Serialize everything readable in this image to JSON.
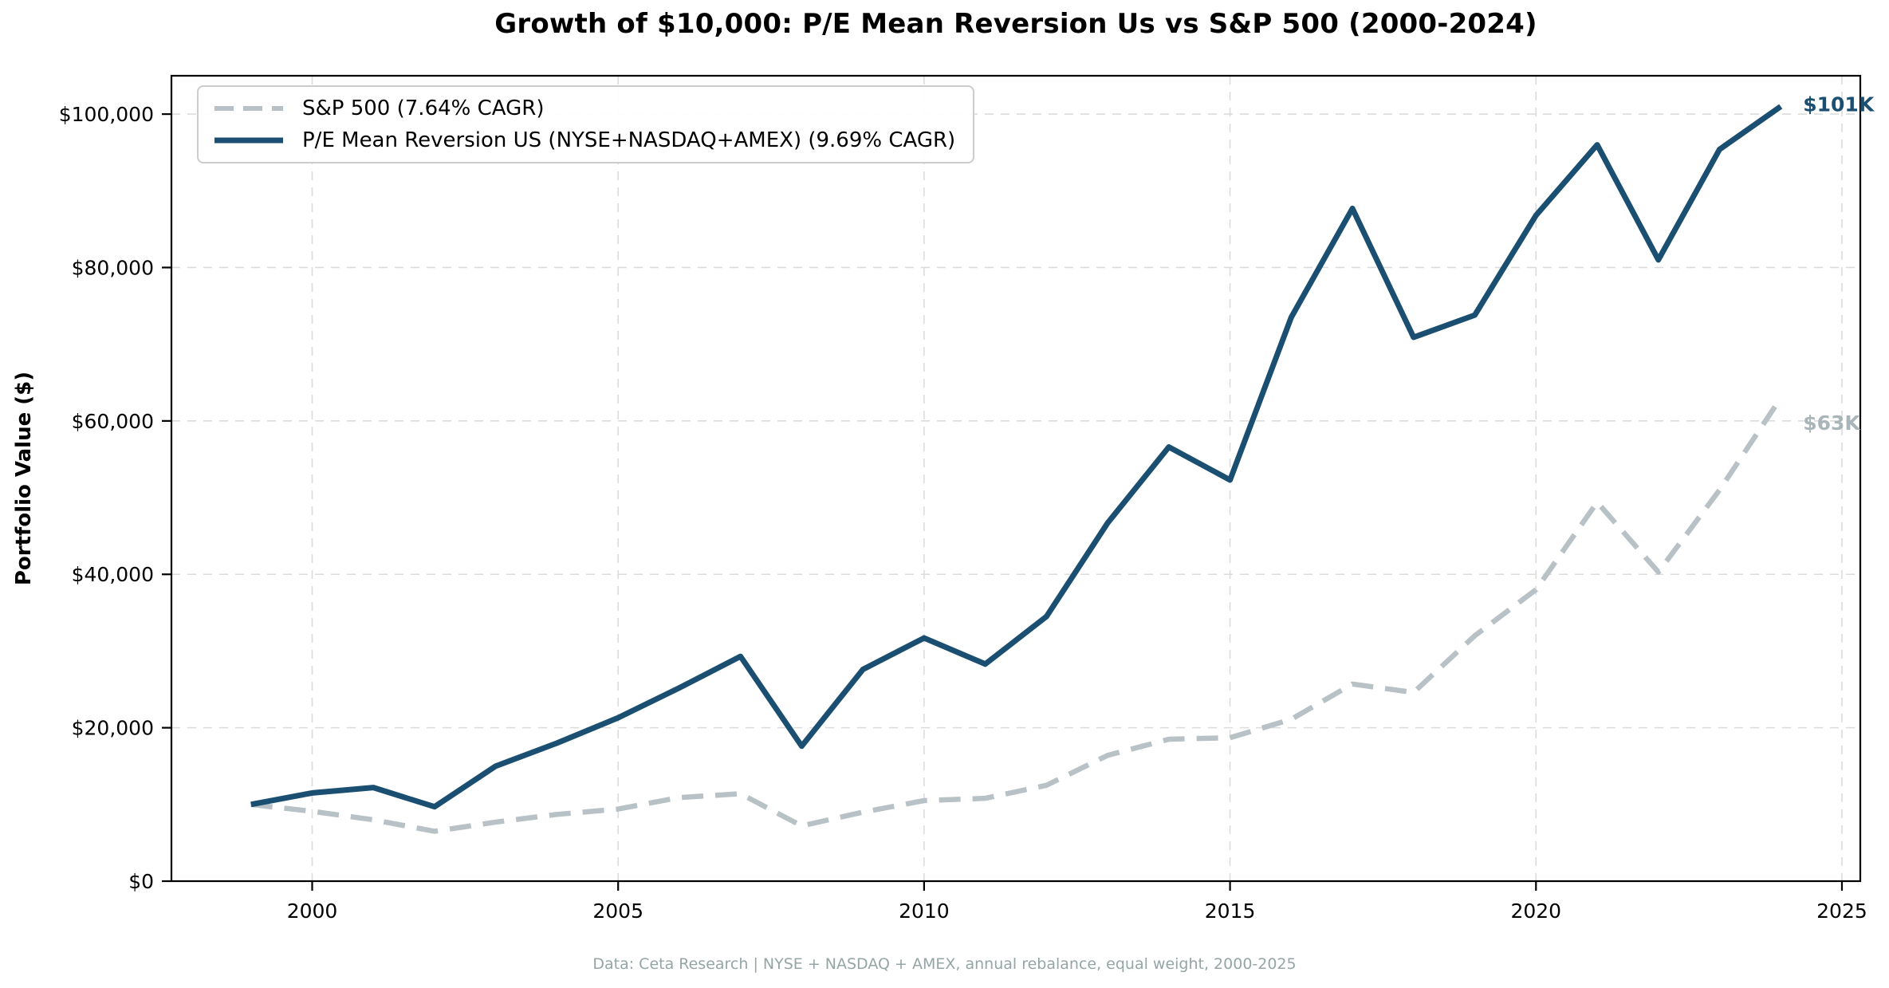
{
  "figure": {
    "title": "Growth of $10,000: P/E Mean Reversion Us vs S&P 500 (2000-2024)",
    "footer": "Data: Ceta Research | NYSE + NASDAQ + AMEX, annual rebalance, equal weight, 2000-2025"
  },
  "chart_data": {
    "type": "line",
    "title": "Growth of $10,000: P/E Mean Reversion Us vs S&P 500 (2000-2024)",
    "xlabel": "",
    "ylabel": "Portfolio Value ($)",
    "grid": true,
    "legend_position": "upper left",
    "xlim": [
      1997.7,
      2025.3
    ],
    "ylim": [
      0,
      105000
    ],
    "x": [
      1999,
      2000,
      2001,
      2002,
      2003,
      2004,
      2005,
      2006,
      2007,
      2008,
      2009,
      2010,
      2011,
      2012,
      2013,
      2014,
      2015,
      2016,
      2017,
      2018,
      2019,
      2020,
      2021,
      2022,
      2023,
      2024
    ],
    "xticks": {
      "values": [
        2000,
        2005,
        2010,
        2015,
        2020,
        2025
      ],
      "labels": [
        "2000",
        "2005",
        "2010",
        "2015",
        "2020",
        "2025"
      ]
    },
    "yticks": {
      "values": [
        0,
        20000,
        40000,
        60000,
        80000,
        100000
      ],
      "labels": [
        "$0",
        "$20,000",
        "$40,000",
        "$60,000",
        "$80,000",
        "$100,000"
      ]
    },
    "series": [
      {
        "name": "S&P 500 (7.64% CAGR)",
        "style": "dashed",
        "color": "#b8c2c6",
        "end_label": "$63K",
        "end_label_color": "#a9b5b9",
        "values": [
          10000,
          9100,
          8000,
          6500,
          7700,
          8700,
          9400,
          10900,
          11400,
          7200,
          9000,
          10500,
          10800,
          12500,
          16400,
          18500,
          18700,
          21100,
          25700,
          24600,
          32000,
          38000,
          49400,
          40300,
          51000,
          63000
        ]
      },
      {
        "name": "P/E Mean Reversion US (NYSE+NASDAQ+AMEX) (9.69% CAGR)",
        "style": "solid",
        "color": "#1b4f72",
        "end_label": "$101K",
        "end_label_color": "#1b4f72",
        "values": [
          10000,
          11500,
          12200,
          9700,
          15000,
          18000,
          21300,
          25200,
          29300,
          17600,
          27600,
          31700,
          28300,
          34500,
          46700,
          56600,
          52300,
          73500,
          87700,
          70900,
          73800,
          86800,
          96000,
          81000,
          95400,
          101000
        ]
      }
    ],
    "colors": {
      "grid": "#dcdcdc",
      "spine": "#000000",
      "tick_label": "#000000",
      "footer": "#95a5a6"
    }
  }
}
